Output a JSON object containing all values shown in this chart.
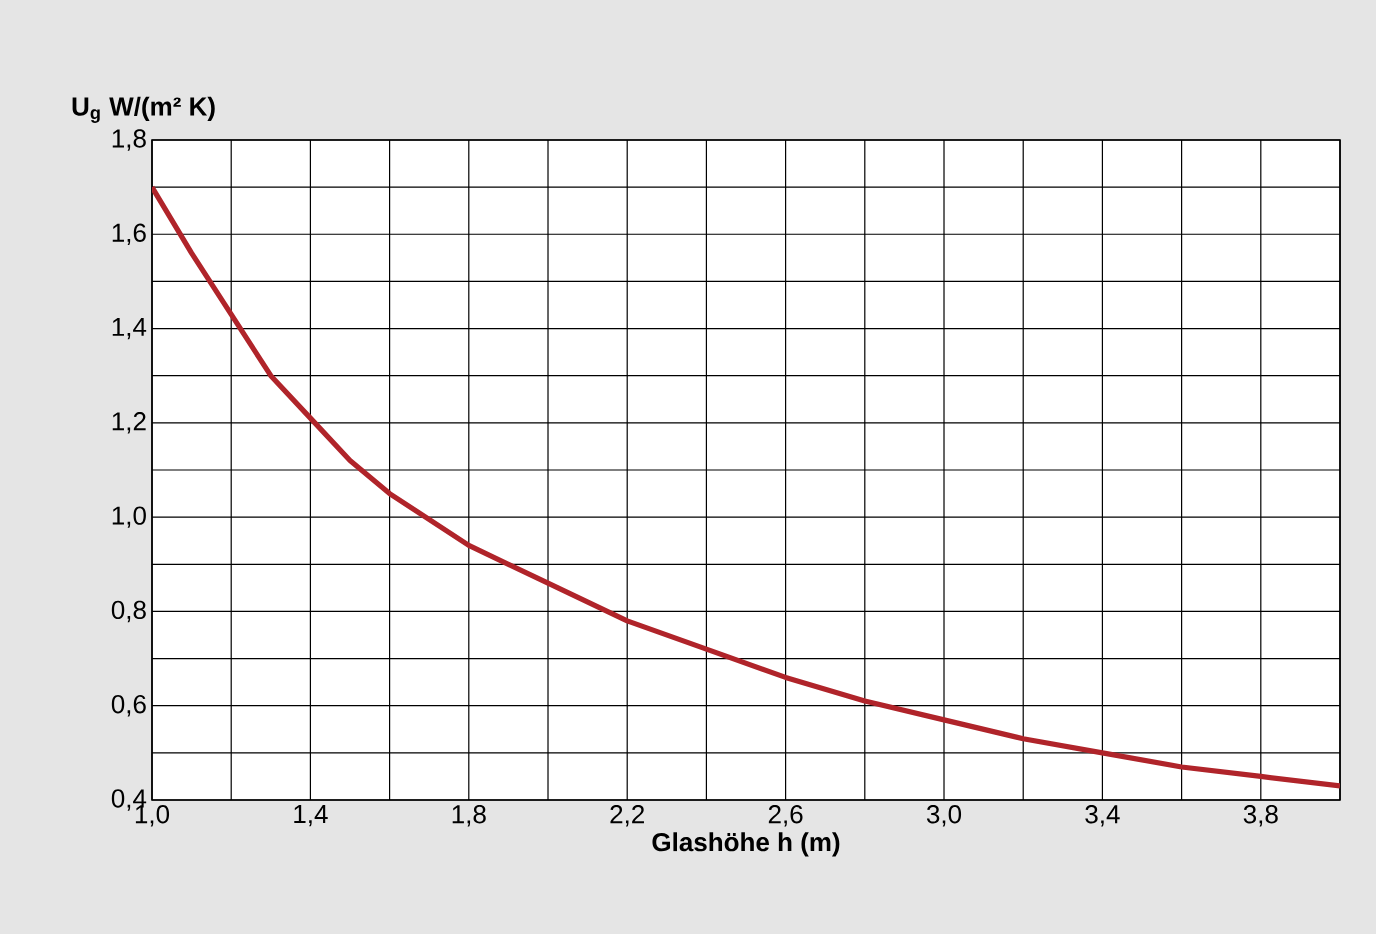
{
  "chart_data": {
    "type": "line",
    "xlabel": "Glashöhe h (m)",
    "ylabel": "U$_{g}$ W/(m² K)",
    "x": [
      1.0,
      1.1,
      1.2,
      1.3,
      1.4,
      1.5,
      1.6,
      1.8,
      2.0,
      2.2,
      2.4,
      2.6,
      2.8,
      3.0,
      3.2,
      3.4,
      3.6,
      3.8,
      4.0
    ],
    "series": [
      {
        "color": "#b0242a",
        "values": [
          1.7,
          1.56,
          1.43,
          1.3,
          1.21,
          1.12,
          1.05,
          0.94,
          0.86,
          0.78,
          0.72,
          0.66,
          0.61,
          0.57,
          0.53,
          0.5,
          0.47,
          0.45,
          0.43
        ]
      }
    ],
    "xlim": [
      1.0,
      4.0
    ],
    "ylim": [
      0.4,
      1.8
    ],
    "xticks": [
      {
        "value": 1.0,
        "label": "1,0"
      },
      {
        "value": 1.2,
        "label": null
      },
      {
        "value": 1.4,
        "label": "1,4"
      },
      {
        "value": 1.6,
        "label": null
      },
      {
        "value": 1.8,
        "label": "1,8"
      },
      {
        "value": 2.0,
        "label": null
      },
      {
        "value": 2.2,
        "label": "2,2"
      },
      {
        "value": 2.4,
        "label": null
      },
      {
        "value": 2.6,
        "label": "2,6"
      },
      {
        "value": 2.8,
        "label": null
      },
      {
        "value": 3.0,
        "label": "3,0"
      },
      {
        "value": 3.2,
        "label": null
      },
      {
        "value": 3.4,
        "label": "3,4"
      },
      {
        "value": 3.6,
        "label": null
      },
      {
        "value": 3.8,
        "label": "3,8"
      },
      {
        "value": 4.0,
        "label": null
      }
    ],
    "yticks": [
      {
        "value": 0.4,
        "label": "0,4"
      },
      {
        "value": 0.5,
        "label": null
      },
      {
        "value": 0.6,
        "label": "0,6"
      },
      {
        "value": 0.7,
        "label": null
      },
      {
        "value": 0.8,
        "label": "0,8"
      },
      {
        "value": 0.9,
        "label": null
      },
      {
        "value": 1.0,
        "label": "1,0"
      },
      {
        "value": 1.1,
        "label": null
      },
      {
        "value": 1.2,
        "label": "1,2"
      },
      {
        "value": 1.3,
        "label": null
      },
      {
        "value": 1.4,
        "label": "1,4"
      },
      {
        "value": 1.5,
        "label": null
      },
      {
        "value": 1.6,
        "label": "1,6"
      },
      {
        "value": 1.7,
        "label": null
      },
      {
        "value": 1.8,
        "label": "1,8"
      }
    ],
    "grid": true,
    "marker": "none",
    "line_style": "solid"
  }
}
